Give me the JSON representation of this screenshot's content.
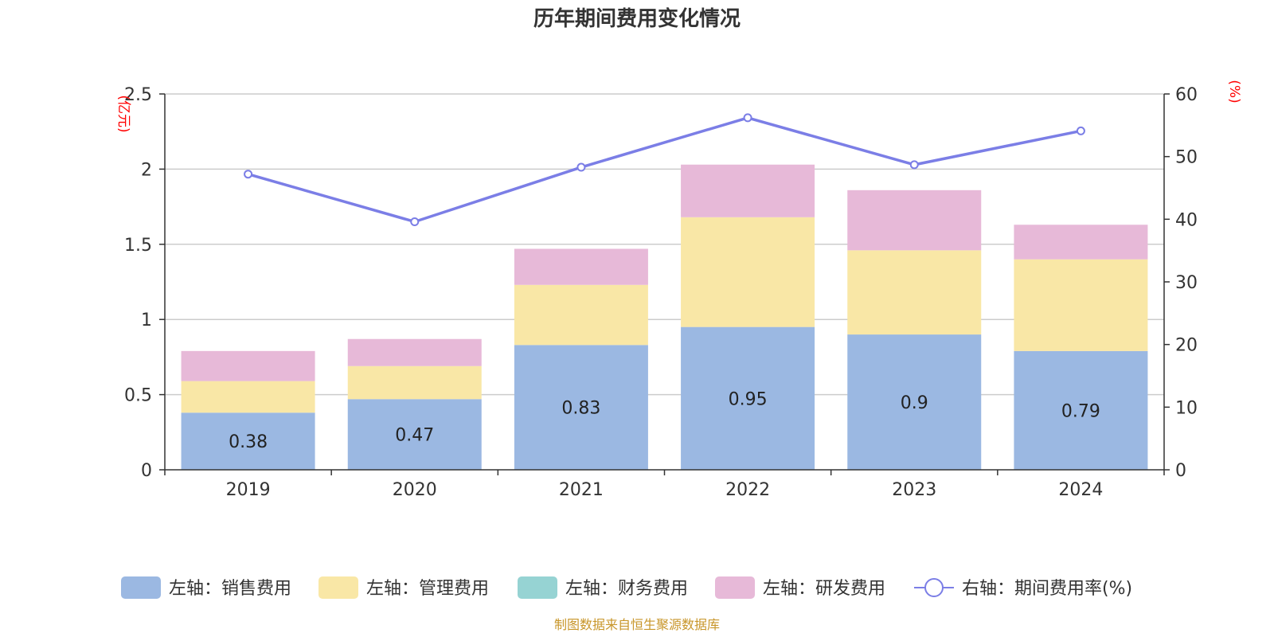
{
  "chart_data": {
    "type": "bar",
    "title": "历年期间费用变化情况",
    "categories": [
      "2019",
      "2020",
      "2021",
      "2022",
      "2023",
      "2024"
    ],
    "left_axis": {
      "unit": "(亿元)",
      "ylim": [
        0,
        2.5
      ],
      "ticks": [
        "0",
        "0.5",
        "1",
        "1.5",
        "2",
        "2.5"
      ]
    },
    "right_axis": {
      "unit": "(%)",
      "ylim": [
        0,
        60
      ],
      "ticks": [
        "0",
        "10",
        "20",
        "30",
        "40",
        "50",
        "60"
      ]
    },
    "grid": true,
    "legend_position": "bottom",
    "series": [
      {
        "name": "左轴：销售费用",
        "type": "bar",
        "stack": true,
        "color": "#9bb8e2",
        "values": [
          0.38,
          0.47,
          0.83,
          0.95,
          0.9,
          0.79
        ],
        "labels": [
          "0.38",
          "0.47",
          "0.83",
          "0.95",
          "0.9",
          "0.79"
        ]
      },
      {
        "name": "左轴：管理费用",
        "type": "bar",
        "stack": true,
        "color": "#f9e7a6",
        "values": [
          0.21,
          0.22,
          0.4,
          0.73,
          0.56,
          0.61
        ]
      },
      {
        "name": "左轴：财务费用",
        "type": "bar",
        "stack": true,
        "color": "#96d3d3",
        "values": [
          0,
          0,
          0,
          0,
          0,
          0
        ]
      },
      {
        "name": "左轴：研发费用",
        "type": "bar",
        "stack": true,
        "color": "#e7b9d8",
        "values": [
          0.2,
          0.18,
          0.24,
          0.35,
          0.4,
          0.23
        ]
      },
      {
        "name": "右轴：期间费用率(%)",
        "type": "line",
        "axis": "right",
        "color": "#7b7ee6",
        "values": [
          47.2,
          39.6,
          48.3,
          56.2,
          48.7,
          54.1
        ]
      }
    ]
  },
  "source_note": "制图数据来自恒生聚源数据库"
}
